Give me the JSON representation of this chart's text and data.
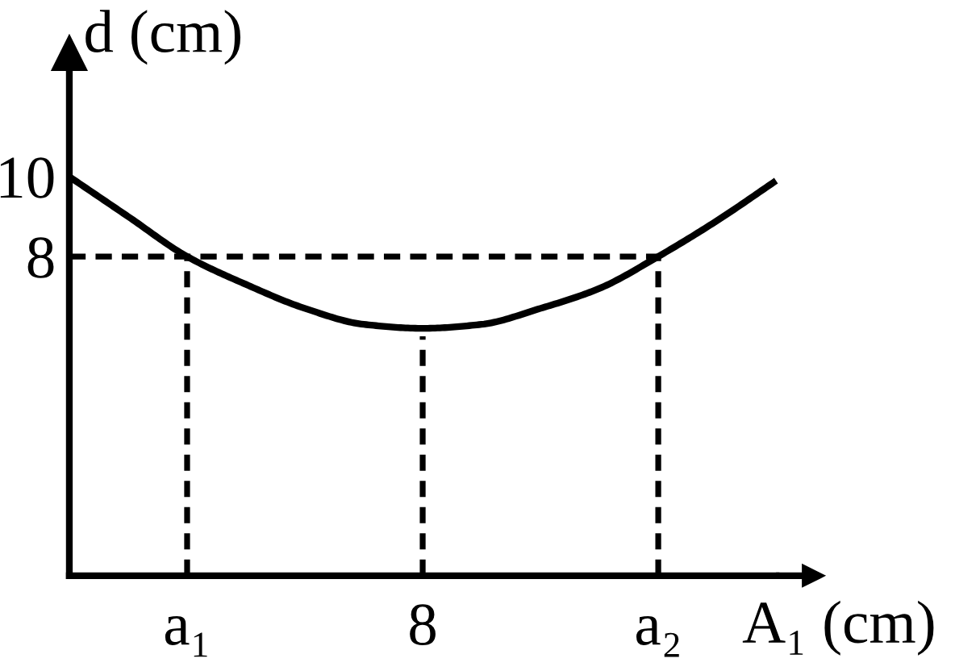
{
  "chart_data": {
    "type": "line",
    "xlabel": "A₁ (cm)",
    "ylabel": "d (cm)",
    "categories": [
      null,
      null,
      "a₁",
      null,
      null,
      null,
      "8",
      null,
      null,
      null,
      "a₂",
      null,
      null
    ],
    "ylim": [
      0,
      13.1
    ],
    "yticks": [
      10,
      8
    ],
    "series": [
      {
        "color": "#000000",
        "line_style": "solid",
        "values": [
          10.0,
          9.0,
          8.0,
          7.3,
          6.7,
          6.3,
          6.2,
          6.3,
          6.7,
          7.2,
          8.0,
          8.9,
          9.9
        ]
      },
      {
        "color": "#000000",
        "line_style": "dashed",
        "values": [
          8,
          8,
          8,
          8,
          8,
          8,
          8,
          8,
          8,
          8,
          8,
          null,
          null
        ]
      },
      {
        "color": "#000000",
        "line_style": "dashed",
        "x": [
          "a₁",
          "a₁"
        ],
        "values": [
          0,
          8
        ]
      },
      {
        "color": "#000000",
        "line_style": "dashed",
        "x": [
          "8",
          "8"
        ],
        "values": [
          0,
          6.0
        ]
      },
      {
        "color": "#000000",
        "line_style": "dashed",
        "x": [
          "a₂",
          "a₂"
        ],
        "values": [
          0,
          8
        ]
      }
    ]
  }
}
